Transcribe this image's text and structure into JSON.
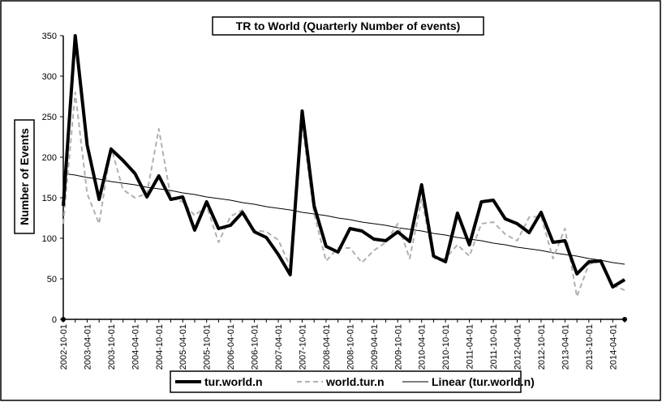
{
  "chart_data": {
    "type": "line",
    "title": "TR to World (Quarterly Number of events)",
    "y_label": "Number of Events",
    "categories": [
      "2002-10-01",
      null,
      "2003-04-01",
      null,
      "2003-10-01",
      null,
      "2004-04-01",
      null,
      "2004-10-01",
      null,
      "2005-04-01",
      null,
      "2005-10-01",
      null,
      "2006-04-01",
      null,
      "2006-10-01",
      null,
      "2007-04-01",
      null,
      "2007-10-01",
      null,
      "2008-04-01",
      null,
      "2008-10-01",
      null,
      "2009-04-01",
      null,
      "2009-10-01",
      null,
      "2010-04-01",
      null,
      "2010-10-01",
      null,
      "2011-04-01",
      null,
      "2011-10-01",
      null,
      "2012-04-01",
      null,
      "2012-10-01",
      null,
      "2013-04-01",
      null,
      "2013-10-01",
      null,
      "2014-04-01",
      null
    ],
    "series": [
      {
        "name": "tur.world.n",
        "color": "#000000",
        "style": "solid",
        "width": 4,
        "values": [
          140,
          350,
          215,
          148,
          210,
          196,
          180,
          151,
          177,
          148,
          151,
          110,
          145,
          112,
          116,
          132,
          108,
          101,
          80,
          55,
          257,
          140,
          90,
          83,
          112,
          109,
          99,
          97,
          108,
          96,
          166,
          78,
          71,
          131,
          92,
          145,
          147,
          124,
          118,
          107,
          132,
          95,
          97,
          56,
          71,
          72,
          40,
          49
        ]
      },
      {
        "name": "world.tur.n",
        "color": "#b0b0b0",
        "style": "dashed",
        "width": 2,
        "values": [
          118,
          280,
          155,
          118,
          212,
          160,
          150,
          155,
          235,
          150,
          145,
          128,
          140,
          95,
          127,
          135,
          110,
          108,
          98,
          65,
          240,
          130,
          72,
          88,
          88,
          70,
          85,
          95,
          118,
          75,
          148,
          75,
          75,
          92,
          78,
          118,
          120,
          105,
          97,
          126,
          127,
          75,
          112,
          28,
          68,
          72,
          42,
          36
        ]
      },
      {
        "name": "Linear (tur.world.n)",
        "color": "#000000",
        "style": "solid",
        "width": 1,
        "values": [
          180,
          178,
          175,
          173,
          170,
          168,
          166,
          163,
          161,
          159,
          156,
          154,
          151,
          149,
          147,
          144,
          142,
          139,
          137,
          135,
          132,
          130,
          128,
          125,
          123,
          120,
          118,
          116,
          113,
          111,
          109,
          106,
          104,
          101,
          99,
          97,
          94,
          92,
          89,
          87,
          85,
          82,
          80,
          78,
          75,
          73,
          70,
          68
        ]
      }
    ],
    "ylim": [
      0,
      350
    ],
    "yticks": [
      0,
      50,
      100,
      150,
      200,
      250,
      300,
      350
    ],
    "grid": false
  }
}
